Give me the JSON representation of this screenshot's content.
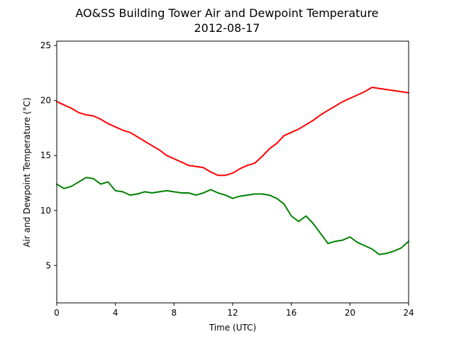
{
  "chart_data": {
    "type": "line",
    "title": "AO&SS Building Tower Air and Dewpoint Temperature",
    "subtitle": "2012-08-17",
    "xlabel": "Time (UTC)",
    "ylabel": "Air and Dewpoint Temperature (°C)",
    "xlim": [
      0,
      24
    ],
    "ylim": [
      1.6,
      25.4
    ],
    "xticks": [
      0,
      4,
      8,
      12,
      16,
      20,
      24
    ],
    "yticks": [
      5,
      10,
      15,
      20,
      25
    ],
    "grid": false,
    "series": [
      {
        "color": "#ff0000",
        "x": [
          0,
          0.5,
          1,
          1.5,
          2,
          2.5,
          3,
          3.5,
          4,
          4.5,
          5,
          5.5,
          6,
          6.5,
          7,
          7.5,
          8,
          8.5,
          9,
          9.5,
          10,
          10.5,
          11,
          11.5,
          12,
          12.5,
          13,
          13.5,
          14,
          14.5,
          15,
          15.5,
          16,
          16.5,
          17,
          17.5,
          18,
          18.5,
          19,
          19.5,
          20,
          20.5,
          21,
          21.5,
          22,
          22.5,
          23,
          23.5,
          24
        ],
        "values": [
          19.9,
          19.6,
          19.3,
          18.9,
          18.7,
          18.6,
          18.3,
          17.9,
          17.6,
          17.3,
          17.1,
          16.7,
          16.3,
          15.9,
          15.5,
          15.0,
          14.7,
          14.4,
          14.1,
          14.0,
          13.9,
          13.5,
          13.2,
          13.2,
          13.4,
          13.8,
          14.1,
          14.3,
          14.9,
          15.6,
          16.1,
          16.8,
          17.1,
          17.4,
          17.8,
          18.2,
          18.7,
          19.1,
          19.5,
          19.9,
          20.2,
          20.5,
          20.8,
          21.2,
          21.1,
          21.0,
          20.9,
          20.8,
          20.7
        ]
      },
      {
        "color": "#008000",
        "x": [
          0,
          0.5,
          1,
          1.5,
          2,
          2.5,
          3,
          3.5,
          4,
          4.5,
          5,
          5.5,
          6,
          6.5,
          7,
          7.5,
          8,
          8.5,
          9,
          9.5,
          10,
          10.5,
          11,
          11.5,
          12,
          12.5,
          13,
          13.5,
          14,
          14.5,
          15,
          15.5,
          16,
          16.5,
          17,
          17.5,
          18,
          18.5,
          19,
          19.5,
          20,
          20.5,
          21,
          21.5,
          22,
          22.5,
          23,
          23.5,
          24
        ],
        "values": [
          12.4,
          12.0,
          12.2,
          12.6,
          13.0,
          12.9,
          12.4,
          12.6,
          11.8,
          11.7,
          11.4,
          11.5,
          11.7,
          11.6,
          11.7,
          11.8,
          11.7,
          11.6,
          11.6,
          11.4,
          11.6,
          11.9,
          11.6,
          11.4,
          11.1,
          11.3,
          11.4,
          11.5,
          11.5,
          11.4,
          11.1,
          10.6,
          9.5,
          9.0,
          9.5,
          8.8,
          7.9,
          7.0,
          7.2,
          7.3,
          7.6,
          7.1,
          6.8,
          6.5,
          6.0,
          6.1,
          6.3,
          6.6,
          7.2
        ]
      }
    ]
  }
}
